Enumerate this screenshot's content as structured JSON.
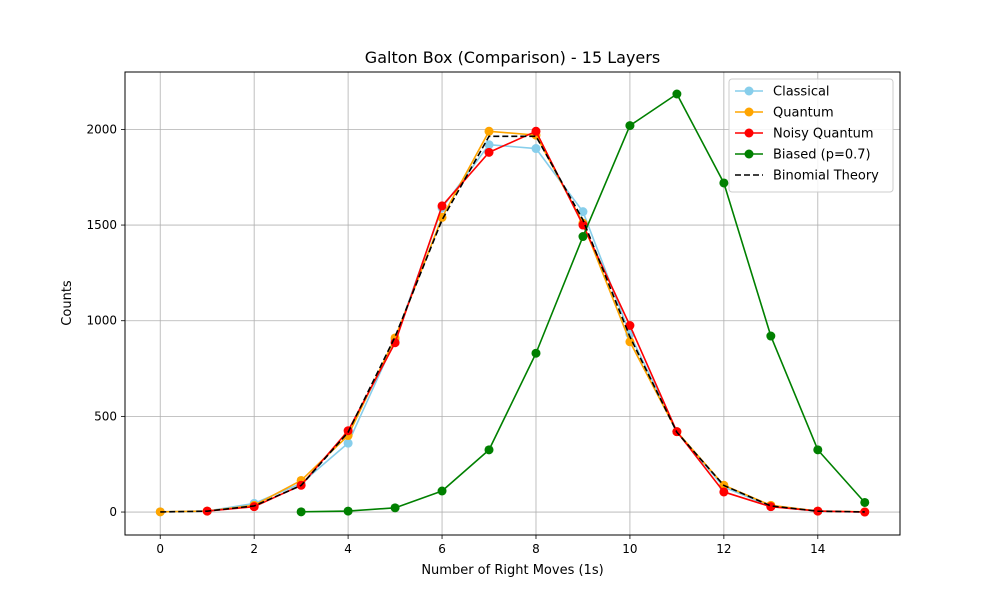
{
  "chart_data": {
    "type": "line",
    "title": "Galton Box (Comparison) - 15 Layers",
    "xlabel": "Number of Right Moves (1s)",
    "ylabel": "Counts",
    "xlim": [
      -0.75,
      15.75
    ],
    "ylim": [
      -120,
      2300
    ],
    "xticks": [
      0,
      2,
      4,
      6,
      8,
      10,
      12,
      14
    ],
    "yticks": [
      0,
      500,
      1000,
      1500,
      2000
    ],
    "grid": true,
    "legend_position": "top-right",
    "series": [
      {
        "name": "Classical",
        "color": "#87CEEB",
        "marker": "circle",
        "linestyle": "solid",
        "x": [
          0,
          1,
          2,
          3,
          4,
          5,
          6,
          7,
          8,
          9,
          10,
          11,
          12,
          13,
          14
        ],
        "y": [
          1,
          5,
          45,
          150,
          360,
          900,
          1590,
          1920,
          1900,
          1570,
          930,
          420,
          130,
          30,
          5
        ]
      },
      {
        "name": "Quantum",
        "color": "#FFA500",
        "marker": "circle",
        "linestyle": "solid",
        "x": [
          0,
          1,
          2,
          3,
          4,
          5,
          6,
          7,
          8,
          9,
          10,
          11,
          12,
          13,
          14,
          15
        ],
        "y": [
          1,
          5,
          35,
          165,
          400,
          910,
          1540,
          1990,
          1970,
          1510,
          890,
          420,
          140,
          35,
          5,
          1
        ]
      },
      {
        "name": "Noisy Quantum",
        "color": "#FF0000",
        "marker": "circle",
        "linestyle": "solid",
        "x": [
          1,
          2,
          3,
          4,
          5,
          6,
          7,
          8,
          9,
          10,
          11,
          12,
          13,
          14,
          15
        ],
        "y": [
          5,
          28,
          140,
          425,
          885,
          1600,
          1880,
          1990,
          1500,
          975,
          420,
          105,
          28,
          5,
          0
        ]
      },
      {
        "name": "Biased (p=0.7)",
        "color": "#008000",
        "marker": "circle",
        "linestyle": "solid",
        "x": [
          3,
          4,
          5,
          6,
          7,
          8,
          9,
          10,
          11,
          12,
          13,
          14,
          15
        ],
        "y": [
          1,
          5,
          22,
          110,
          325,
          830,
          1440,
          2020,
          2185,
          1720,
          920,
          325,
          50
        ]
      },
      {
        "name": "Binomial Theory",
        "color": "#000000",
        "marker": "none",
        "linestyle": "dashed",
        "x": [
          0,
          1,
          2,
          3,
          4,
          5,
          6,
          7,
          8,
          9,
          10,
          11,
          12,
          13,
          14,
          15
        ],
        "y": [
          0.3,
          4.6,
          32,
          139,
          417,
          916,
          1527,
          1964,
          1964,
          1527,
          916,
          417,
          139,
          32,
          4.6,
          0.3
        ]
      }
    ]
  }
}
